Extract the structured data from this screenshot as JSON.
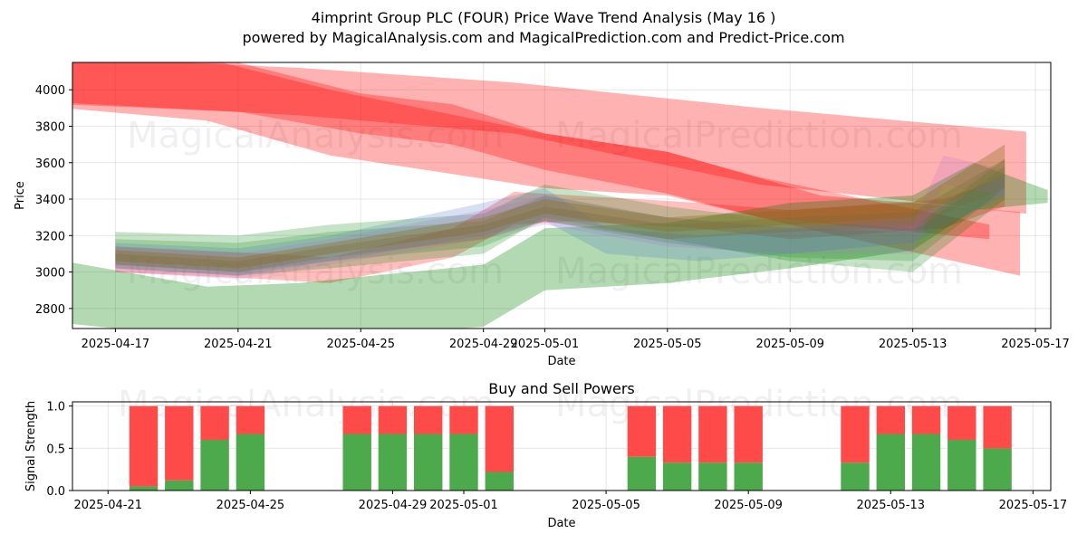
{
  "chart_data": [
    {
      "type": "area",
      "title_line1": "4imprint Group PLC (FOUR) Price Wave Trend Analysis (May 16 )",
      "title_line2": "powered by MagicalAnalysis.com and MagicalPrediction.com and Predict-Price.com",
      "xlabel": "Date",
      "ylabel": "Price",
      "ylim": [
        2690,
        4150
      ],
      "y_ticks": [
        2800,
        3000,
        3200,
        3400,
        3600,
        3800,
        4000
      ],
      "x_ticks": [
        {
          "day": 1,
          "label": "2025-04-17"
        },
        {
          "day": 5,
          "label": "2025-04-21"
        },
        {
          "day": 9,
          "label": "2025-04-25"
        },
        {
          "day": 13,
          "label": "2025-04-29"
        },
        {
          "day": 15,
          "label": "2025-05-01"
        },
        {
          "day": 19,
          "label": "2025-05-05"
        },
        {
          "day": 23,
          "label": "2025-05-09"
        },
        {
          "day": 27,
          "label": "2025-05-13"
        },
        {
          "day": 31,
          "label": "2025-05-17"
        }
      ],
      "xlim": [
        -0.4,
        31.5
      ],
      "watermarks": [
        "MagicalAnalysis.com",
        "MagicalPrediction.com"
      ],
      "series": [
        {
          "name": "red-wave-1",
          "color": "#ff0000",
          "opacity": 0.3,
          "x": [
            -0.7,
            7,
            14,
            22,
            30.7
          ],
          "upper": [
            4180,
            4120,
            4040,
            3900,
            3770
          ],
          "lower": [
            3930,
            3860,
            3760,
            3480,
            3320
          ]
        },
        {
          "name": "red-wave-2",
          "color": "#ff0000",
          "opacity": 0.3,
          "x": [
            -0.7,
            4,
            8,
            15,
            19,
            24,
            30.5
          ],
          "upper": [
            4170,
            4170,
            4000,
            3760,
            3660,
            3420,
            3330
          ],
          "lower": [
            3900,
            3830,
            3640,
            3460,
            3420,
            3220,
            2980
          ]
        },
        {
          "name": "red-wave-3",
          "color": "#ff0000",
          "opacity": 0.3,
          "x": [
            -0.7,
            5,
            9,
            12,
            15,
            19,
            22,
            29.5
          ],
          "upper": [
            4180,
            4150,
            3980,
            3920,
            3760,
            3660,
            3520,
            3260
          ],
          "lower": [
            3920,
            3880,
            3760,
            3700,
            3560,
            3430,
            3300,
            3180
          ]
        },
        {
          "name": "red-wave-4",
          "color": "#ff0000",
          "opacity": 0.25,
          "x": [
            1,
            6,
            8,
            12,
            14,
            16,
            20,
            23,
            28,
            30
          ],
          "upper": [
            3140,
            3100,
            3080,
            3240,
            3440,
            3420,
            3380,
            3340,
            3400,
            3520
          ],
          "lower": [
            3000,
            2960,
            2940,
            3080,
            3260,
            3280,
            3240,
            3180,
            3240,
            3360
          ]
        },
        {
          "name": "green-wave-1",
          "color": "#008000",
          "opacity": 0.3,
          "x": [
            -0.7,
            4,
            7,
            13,
            15,
            19,
            23,
            27,
            29,
            31.4
          ],
          "upper": [
            3060,
            2920,
            2940,
            3040,
            3240,
            3270,
            3380,
            3420,
            3600,
            3450
          ],
          "lower": [
            2720,
            2640,
            2620,
            2700,
            2900,
            2940,
            3020,
            3120,
            3340,
            3380
          ]
        },
        {
          "name": "green-wave-2",
          "color": "#008000",
          "opacity": 0.22,
          "x": [
            1,
            5,
            8,
            13,
            15,
            19,
            23,
            27,
            30
          ],
          "upper": [
            3220,
            3200,
            3260,
            3320,
            3480,
            3360,
            3280,
            3240,
            3620
          ],
          "lower": [
            3020,
            2980,
            3020,
            3100,
            3300,
            3180,
            3060,
            3000,
            3400
          ]
        },
        {
          "name": "green-wave-3",
          "color": "#008000",
          "opacity": 0.2,
          "x": [
            1,
            5,
            8,
            13,
            15,
            19,
            23,
            27,
            30
          ],
          "upper": [
            3180,
            3160,
            3220,
            3280,
            3420,
            3300,
            3240,
            3220,
            3580
          ],
          "lower": [
            3040,
            3000,
            3060,
            3140,
            3280,
            3160,
            3080,
            3060,
            3460
          ]
        },
        {
          "name": "blue-wave-1",
          "color": "#4472c4",
          "opacity": 0.22,
          "x": [
            1,
            5,
            8,
            13,
            15,
            17,
            20,
            23,
            27,
            30
          ],
          "upper": [
            3160,
            3130,
            3200,
            3380,
            3460,
            3240,
            3200,
            3240,
            3300,
            3540
          ],
          "lower": [
            3020,
            2980,
            3060,
            3200,
            3280,
            3100,
            3060,
            3100,
            3160,
            3420
          ]
        },
        {
          "name": "purple-wave-1",
          "color": "#b060d0",
          "opacity": 0.18,
          "x": [
            1,
            5,
            8,
            13,
            15,
            19,
            23,
            27,
            28,
            30
          ],
          "upper": [
            3140,
            3100,
            3180,
            3340,
            3420,
            3300,
            3250,
            3260,
            3640,
            3560
          ],
          "lower": [
            3000,
            2960,
            3040,
            3180,
            3260,
            3140,
            3100,
            3100,
            3480,
            3420
          ]
        },
        {
          "name": "olive-wave-1",
          "color": "#8b6914",
          "opacity": 0.35,
          "x": [
            1,
            5,
            8,
            13,
            15,
            19,
            23,
            27,
            30
          ],
          "upper": [
            3120,
            3080,
            3160,
            3300,
            3400,
            3300,
            3340,
            3380,
            3700
          ],
          "lower": [
            3060,
            3020,
            3100,
            3220,
            3320,
            3220,
            3260,
            3300,
            3520
          ]
        },
        {
          "name": "olive-wave-2",
          "color": "#7a6a3a",
          "opacity": 0.3,
          "x": [
            1,
            5,
            8,
            13,
            15,
            19,
            23,
            27,
            30
          ],
          "upper": [
            3100,
            3060,
            3140,
            3260,
            3360,
            3260,
            3300,
            3330,
            3620
          ],
          "lower": [
            3040,
            3000,
            3080,
            3180,
            3280,
            3180,
            3220,
            3250,
            3460
          ]
        }
      ]
    },
    {
      "type": "bar",
      "title": "Buy and Sell Powers",
      "xlabel": "Date",
      "ylabel": "Signal Strength",
      "ylim": [
        0,
        1.05
      ],
      "y_ticks": [
        {
          "value": 0.0,
          "label": "0.0"
        },
        {
          "value": 0.5,
          "label": "0.5"
        },
        {
          "value": 1.0,
          "label": "1.0"
        }
      ],
      "x_ticks": [
        {
          "day": 0,
          "label": "2025-04-21"
        },
        {
          "day": 4,
          "label": "2025-04-25"
        },
        {
          "day": 8,
          "label": "2025-04-29"
        },
        {
          "day": 10,
          "label": "2025-05-01"
        },
        {
          "day": 14,
          "label": "2025-05-05"
        },
        {
          "day": 18,
          "label": "2025-05-09"
        },
        {
          "day": 22,
          "label": "2025-05-13"
        },
        {
          "day": 26,
          "label": "2025-05-17"
        }
      ],
      "xlim": [
        -1,
        26.5
      ],
      "watermarks": [
        "MagicalAnalysis.com",
        "MagicalPrediction.com"
      ],
      "buy_color": "#4caa4c",
      "sell_color": "#ff4a4a",
      "bars": [
        {
          "day": 1,
          "buy": 0.05
        },
        {
          "day": 2,
          "buy": 0.12
        },
        {
          "day": 3,
          "buy": 0.6
        },
        {
          "day": 4,
          "buy": 0.67
        },
        {
          "day": 7,
          "buy": 0.67
        },
        {
          "day": 8,
          "buy": 0.67
        },
        {
          "day": 9,
          "buy": 0.67
        },
        {
          "day": 10,
          "buy": 0.67
        },
        {
          "day": 11,
          "buy": 0.22
        },
        {
          "day": 15,
          "buy": 0.4
        },
        {
          "day": 16,
          "buy": 0.33
        },
        {
          "day": 17,
          "buy": 0.33
        },
        {
          "day": 18,
          "buy": 0.33
        },
        {
          "day": 21,
          "buy": 0.33
        },
        {
          "day": 22,
          "buy": 0.67
        },
        {
          "day": 23,
          "buy": 0.67
        },
        {
          "day": 24,
          "buy": 0.6
        },
        {
          "day": 25,
          "buy": 0.5
        }
      ]
    }
  ]
}
